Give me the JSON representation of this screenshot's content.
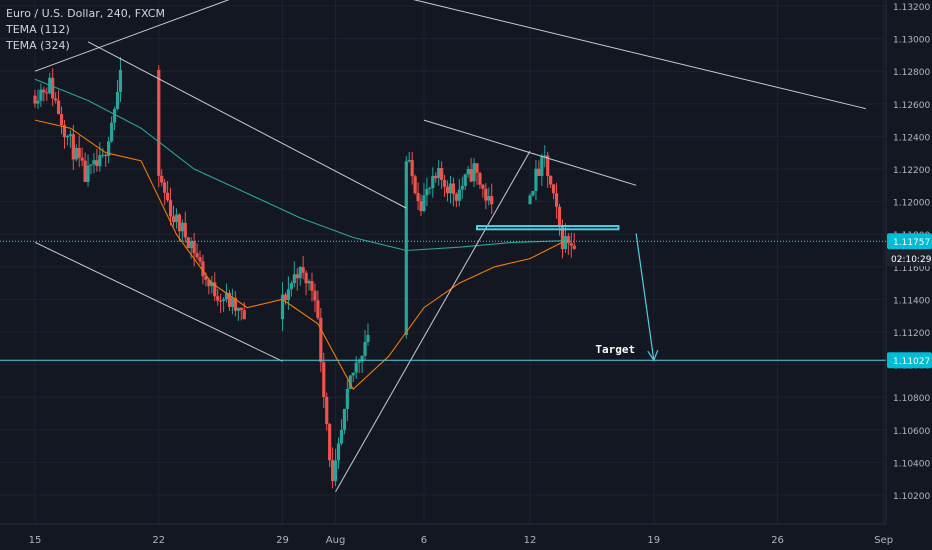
{
  "legend": {
    "title": "Euro / U.S. Dollar, 240, FXCM",
    "indicator_1": "TEMA (112)",
    "indicator_2": "TEMA (324)"
  },
  "colors": {
    "background": "#131722",
    "grid": "#1e2230",
    "bull": "#26a69a",
    "bear": "#ef5350",
    "tema_fast": "#f57c00",
    "tema_slow": "#26a69a",
    "drawing_white": "#c9ccd3",
    "drawing_cyan": "#4dd0e1",
    "axis_text": "#b2b5be",
    "label_bg": "#00bcd4"
  },
  "chart_data": {
    "type": "candlestick",
    "title": "Euro / U.S. Dollar, 240, FXCM",
    "xlabel": "",
    "ylabel": "",
    "x_ticks": [
      "15",
      "22",
      "29",
      "Aug",
      "6",
      "12",
      "19",
      "26",
      "Sep"
    ],
    "y_ticks": [
      "1.13200",
      "1.13000",
      "1.12800",
      "1.12600",
      "1.12400",
      "1.12200",
      "1.12000",
      "1.11800",
      "1.11600",
      "1.11400",
      "1.11200",
      "1.11000",
      "1.10800",
      "1.10600",
      "1.10400",
      "1.10200"
    ],
    "ylim": [
      1.101,
      1.133
    ],
    "grid": true,
    "last_price_label": "1.11757",
    "countdown_label": "02:10:29",
    "target_price_label": "1.11027",
    "annotation": "Target",
    "series": [
      {
        "name": "Euro / U.S. Dollar",
        "type": "candlestick",
        "path_points": [
          [
            "2019-07-15",
            1.1265
          ],
          [
            "2019-07-16",
            1.1272
          ],
          [
            "2019-07-17",
            1.124
          ],
          [
            "2019-07-18",
            1.1215
          ],
          [
            "2019-07-19",
            1.1225
          ],
          [
            "2019-07-20",
            1.1275
          ],
          [
            "2019-07-21",
            1.1255
          ],
          [
            "2019-07-22",
            1.122
          ],
          [
            "2019-07-23",
            1.119
          ],
          [
            "2019-07-24",
            1.1175
          ],
          [
            "2019-07-25",
            1.1148
          ],
          [
            "2019-07-26",
            1.114
          ],
          [
            "2019-07-27",
            1.1128
          ],
          [
            "2019-07-28",
            1.115
          ],
          [
            "2019-07-29",
            1.1135
          ],
          [
            "2019-07-30",
            1.1158
          ],
          [
            "2019-07-31",
            1.1145
          ],
          [
            "2019-08-01",
            1.1025
          ],
          [
            "2019-08-02",
            1.109
          ],
          [
            "2019-08-03",
            1.112
          ],
          [
            "2019-08-04",
            1.115
          ],
          [
            "2019-08-05",
            1.123
          ],
          [
            "2019-08-06",
            1.12
          ],
          [
            "2019-08-07",
            1.1215
          ],
          [
            "2019-08-08",
            1.1205
          ],
          [
            "2019-08-09",
            1.122
          ],
          [
            "2019-08-10",
            1.1195
          ],
          [
            "2019-08-11",
            1.121
          ],
          [
            "2019-08-12",
            1.1205
          ],
          [
            "2019-08-13",
            1.1225
          ],
          [
            "2019-08-14",
            1.1176
          ]
        ]
      },
      {
        "name": "TEMA (112)",
        "points": [
          [
            "2019-07-15",
            1.125
          ],
          [
            "2019-07-17",
            1.1245
          ],
          [
            "2019-07-19",
            1.123
          ],
          [
            "2019-07-21",
            1.1225
          ],
          [
            "2019-07-23",
            1.118
          ],
          [
            "2019-07-25",
            1.115
          ],
          [
            "2019-07-27",
            1.1135
          ],
          [
            "2019-07-29",
            1.114
          ],
          [
            "2019-07-31",
            1.1125
          ],
          [
            "2019-08-02",
            1.1085
          ],
          [
            "2019-08-04",
            1.1105
          ],
          [
            "2019-08-06",
            1.1135
          ],
          [
            "2019-08-08",
            1.115
          ],
          [
            "2019-08-10",
            1.116
          ],
          [
            "2019-08-12",
            1.1165
          ],
          [
            "2019-08-14",
            1.1176
          ]
        ]
      },
      {
        "name": "TEMA (324)",
        "points": [
          [
            "2019-07-15",
            1.1275
          ],
          [
            "2019-07-18",
            1.1262
          ],
          [
            "2019-07-21",
            1.1245
          ],
          [
            "2019-07-24",
            1.122
          ],
          [
            "2019-07-27",
            1.1205
          ],
          [
            "2019-07-30",
            1.119
          ],
          [
            "2019-08-02",
            1.1178
          ],
          [
            "2019-08-05",
            1.117
          ],
          [
            "2019-08-08",
            1.1172
          ],
          [
            "2019-08-11",
            1.1175
          ],
          [
            "2019-08-14",
            1.1176
          ]
        ]
      }
    ],
    "drawings": [
      {
        "type": "trendline",
        "from": [
          "2019-07-15",
          1.128
        ],
        "to": [
          "2019-07-27",
          1.1328
        ]
      },
      {
        "type": "trendline",
        "from": [
          "2019-07-18",
          1.1298
        ],
        "to": [
          "2019-08-05",
          1.1196
        ]
      },
      {
        "type": "trendline",
        "from": [
          "2019-07-15",
          1.1175
        ],
        "to": [
          "2019-07-29",
          1.1102
        ]
      },
      {
        "type": "trendline",
        "from": [
          "2019-08-05",
          1.1325
        ],
        "to": [
          "2019-08-31",
          1.1257
        ]
      },
      {
        "type": "trendline",
        "from": [
          "2019-08-06",
          1.125
        ],
        "to": [
          "2019-08-18",
          1.121
        ]
      },
      {
        "type": "trendline",
        "from": [
          "2019-08-01",
          1.1022
        ],
        "to": [
          "2019-08-12",
          1.1231
        ]
      },
      {
        "type": "rectangle",
        "from": [
          "2019-08-09",
          1.1185
        ],
        "to": [
          "2019-08-17",
          1.1183
        ]
      },
      {
        "type": "hline",
        "price": 1.11757
      },
      {
        "type": "hline",
        "price": 1.11027
      },
      {
        "type": "arrow",
        "from": [
          "2019-08-18",
          1.11805
        ],
        "to": [
          "2019-08-19",
          1.11027
        ]
      }
    ]
  }
}
